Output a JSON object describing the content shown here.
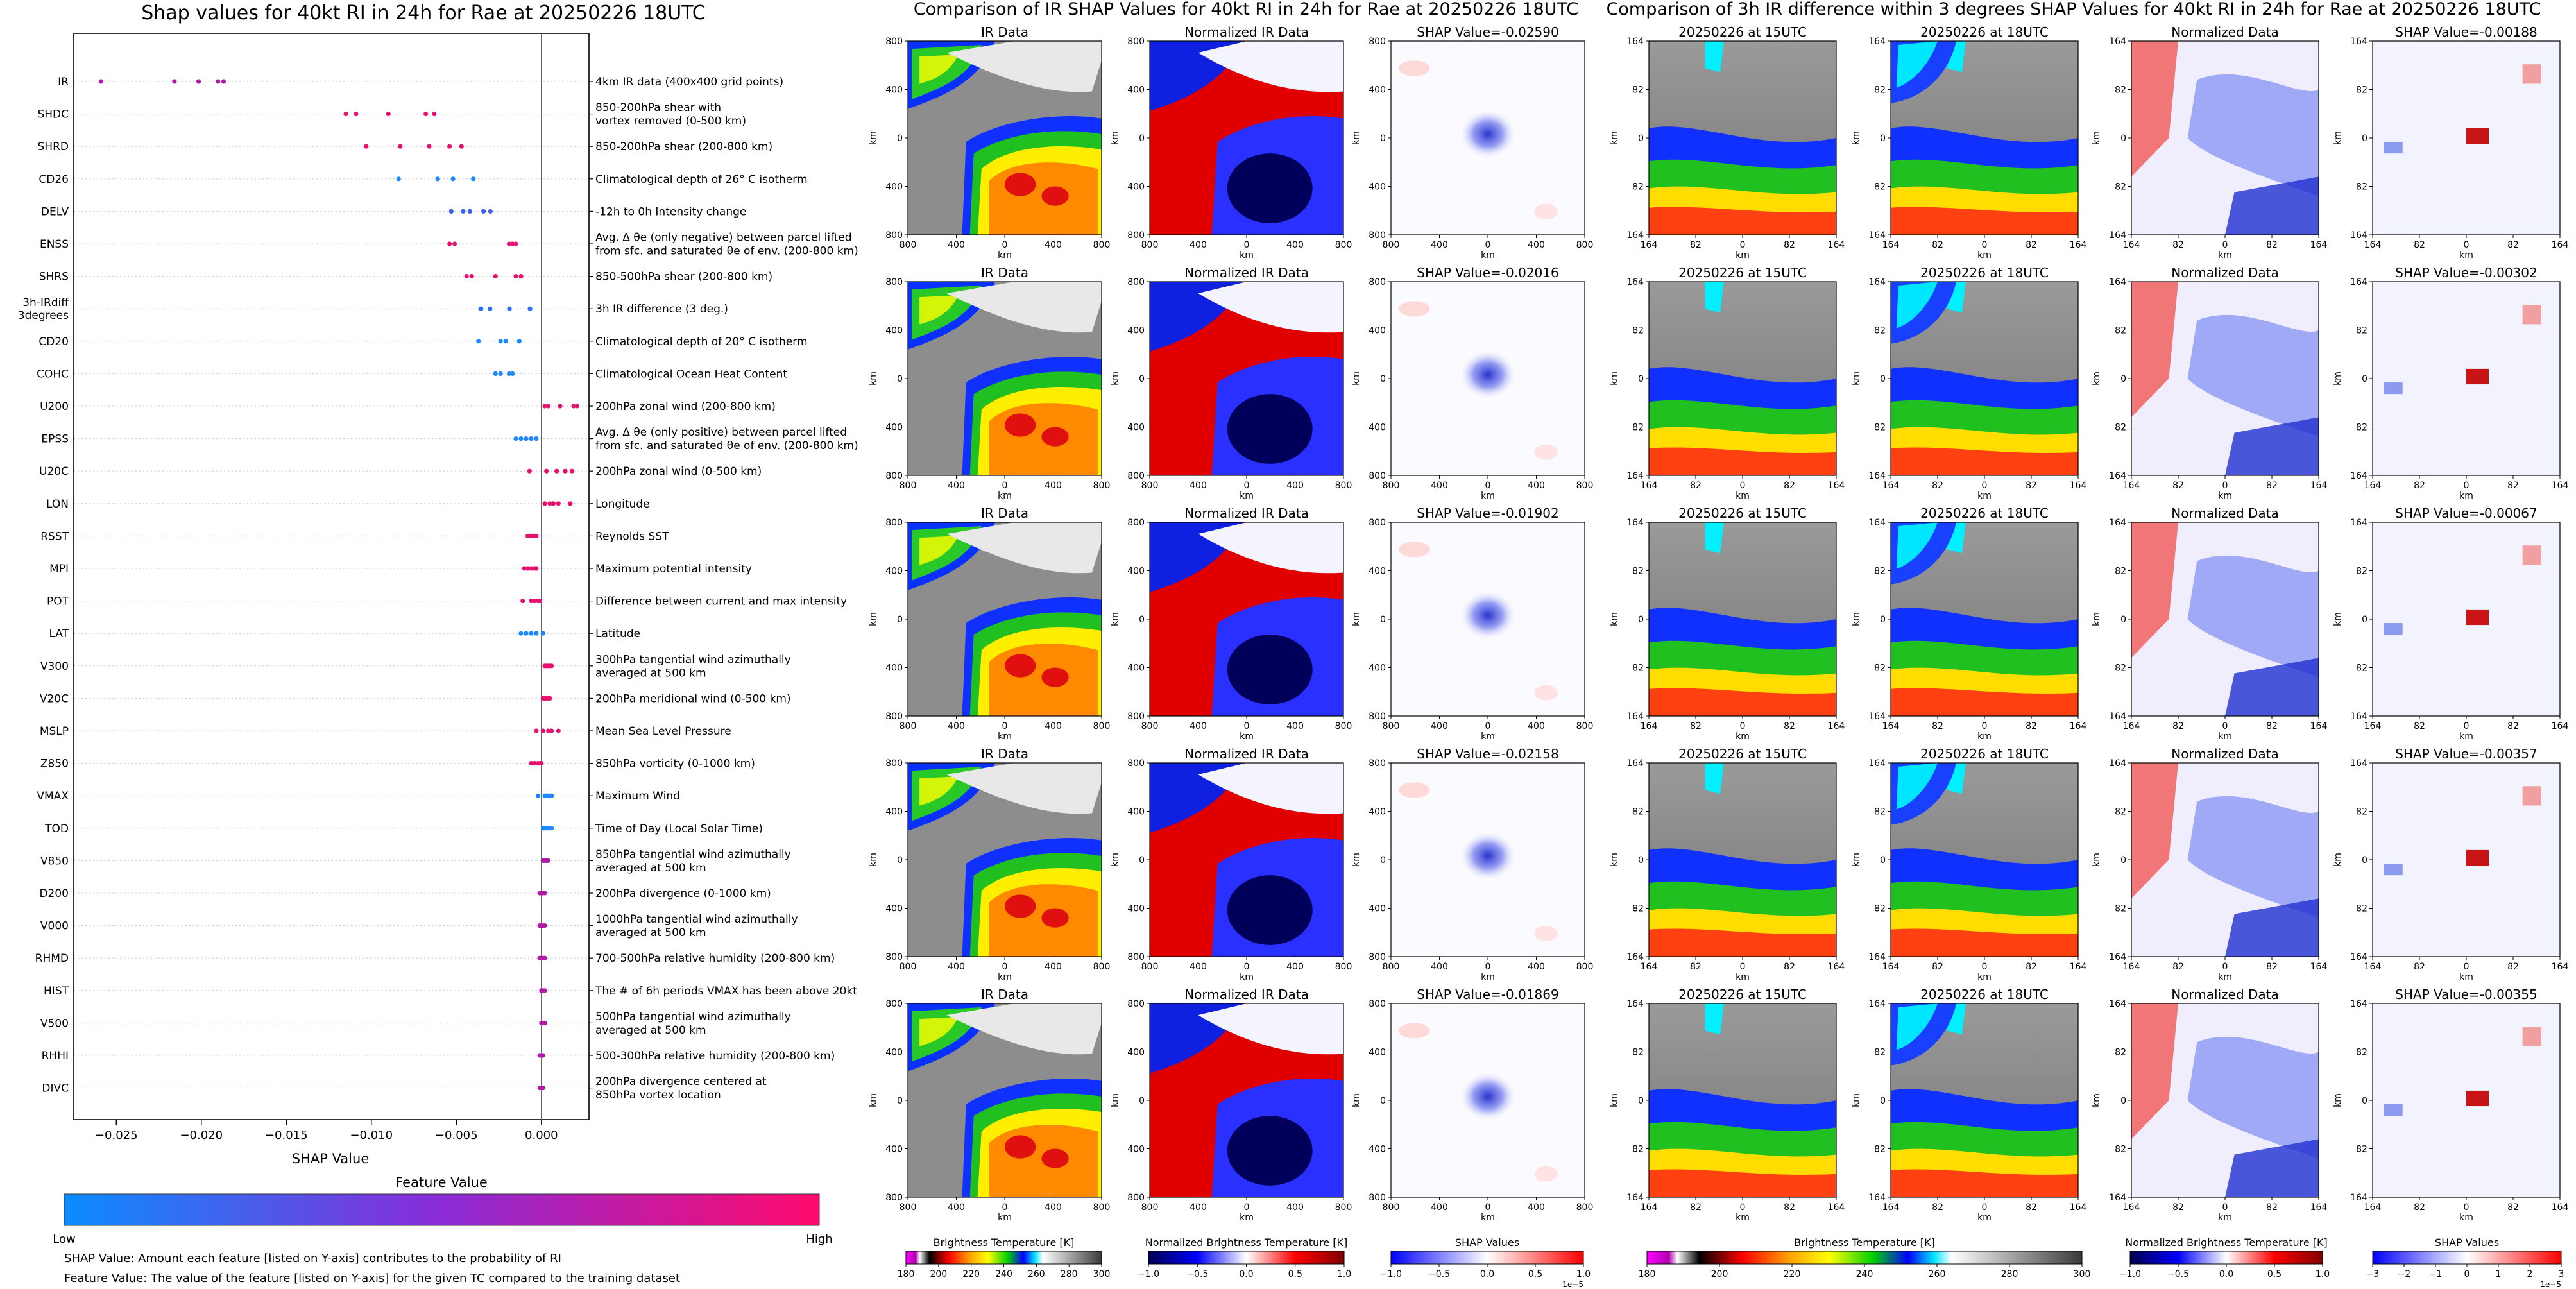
{
  "colors": {
    "feature_low": "#1e88ff",
    "feature_mid": "#8b2bd6",
    "feature_high": "#ff0a6c",
    "shap_positive": "#d62020",
    "shap_negative": "#2030d0"
  },
  "left_panel": {
    "title": "Shap values for 40kt RI in 24h for Rae at 20250226 18UTC",
    "xlabel": "SHAP Value",
    "colorbar_title": "Feature Value",
    "colorbar_low": "Low",
    "colorbar_high": "High",
    "footnote1": "SHAP Value: Amount each feature [listed on Y-axis] contributes to the probability of RI",
    "footnote2": "Feature Value: The value of the feature [listed on Y-axis] for the given TC compared to the training dataset"
  },
  "ir_panel": {
    "title": "Comparison of IR SHAP Values for 40kt RI in 24h for Rae at 20250226 18UTC",
    "col_titles": [
      "IR Data",
      "Normalized IR Data"
    ],
    "shap_titles": [
      "SHAP Value=-0.02590",
      "SHAP Value=-0.02016",
      "SHAP Value=-0.01902",
      "SHAP Value=-0.02158",
      "SHAP Value=-0.01869"
    ],
    "ticks": [
      "800",
      "400",
      "0",
      "400",
      "800"
    ],
    "axis_label": "km",
    "cbar_labels": [
      "Brightness Temperature [K]",
      "Normalized Brightness Temperature [K]",
      "SHAP Values"
    ],
    "cbar1_ticks": [
      "180",
      "200",
      "220",
      "240",
      "260",
      "280",
      "300"
    ],
    "cbar2_ticks": [
      "−1.0",
      "−0.5",
      "0.0",
      "0.5",
      "1.0"
    ],
    "cbar3_ticks": [
      "−1.0",
      "−0.5",
      "0.0",
      "0.5",
      "1.0"
    ],
    "cbar3_exp": "1e−5"
  },
  "diff_panel": {
    "title": "Comparison of 3h IR difference within 3 degrees SHAP Values for 40kt RI in 24h for Rae at 20250226 18UTC",
    "col_titles": [
      "20250226 at 15UTC",
      "20250226 at 18UTC",
      "Normalized Data"
    ],
    "shap_titles": [
      "SHAP Value=-0.00188",
      "SHAP Value=-0.00302",
      "SHAP Value=-0.00067",
      "SHAP Value=-0.00357",
      "SHAP Value=-0.00355"
    ],
    "ticks": [
      "164",
      "82",
      "0",
      "82",
      "164"
    ],
    "axis_label": "km",
    "cbar_labels": [
      "Brightness Temperature [K]",
      "Normalized Brightness Temperature [K]",
      "SHAP Values"
    ],
    "cbar1_ticks": [
      "180",
      "200",
      "220",
      "240",
      "260",
      "280",
      "300"
    ],
    "cbar2_ticks": [
      "−1.0",
      "−0.5",
      "0.0",
      "0.5",
      "1.0"
    ],
    "cbar3_ticks": [
      "−3",
      "−2",
      "−1",
      "0",
      "1",
      "2",
      "3"
    ],
    "cbar3_exp": "1e−5"
  },
  "chart_data": [
    {
      "type": "scatter",
      "title": "Shap values for 40kt RI in 24h for Rae at 20250226 18UTC",
      "xlabel": "SHAP Value",
      "xlim": [
        -0.0275,
        0.0028
      ],
      "xticks": [
        -0.025,
        -0.02,
        -0.015,
        -0.01,
        -0.005,
        0.0
      ],
      "xtick_labels": [
        "−0.025",
        "−0.020",
        "−0.015",
        "−0.010",
        "−0.005",
        "0.000"
      ],
      "legend": "colorbar below plot, Low to High",
      "features": [
        {
          "name": "IR",
          "desc": "4km IR data (400x400 grid points)",
          "color": "#b01aa8",
          "values": [
            -0.0259,
            -0.02158,
            -0.02016,
            -0.01902,
            -0.01869
          ]
        },
        {
          "name": "SHDC",
          "desc": "850-200hPa shear with\nvortex removed (0-500 km)",
          "color": "#e8106e",
          "values": [
            -0.0115,
            -0.0109,
            -0.009,
            -0.0068,
            -0.0063
          ]
        },
        {
          "name": "SHRD",
          "desc": "850-200hPa shear (200-800 km)",
          "color": "#e8106e",
          "values": [
            -0.0103,
            -0.0083,
            -0.0066,
            -0.0054,
            -0.0047
          ]
        },
        {
          "name": "CD26",
          "desc": "Climatological depth of 26° C isotherm",
          "color": "#1e88ff",
          "values": [
            -0.0084,
            -0.0061,
            -0.0052,
            -0.004
          ]
        },
        {
          "name": "DELV",
          "desc": "-12h to 0h Intensity change",
          "color": "#3a60ee",
          "values": [
            -0.0053,
            -0.0046,
            -0.0042,
            -0.0034,
            -0.003
          ]
        },
        {
          "name": "ENSS",
          "desc": "Avg. Δ θe (only negative) between parcel lifted\nfrom sfc. and saturated θe of env. (200-800 km)",
          "color": "#e8106e",
          "values": [
            -0.0054,
            -0.0051,
            -0.0019,
            -0.0017,
            -0.0015
          ]
        },
        {
          "name": "SHRS",
          "desc": "850-500hPa shear (200-800 km)",
          "color": "#e8106e",
          "values": [
            -0.0044,
            -0.0041,
            -0.0027,
            -0.0015,
            -0.0012
          ]
        },
        {
          "name": "3h-IRdiff\n3degrees",
          "desc": "3h IR difference (3 deg.)",
          "color": "#2a70f5",
          "values": [
            -0.00357,
            -0.00355,
            -0.00302,
            -0.00188,
            -0.00067
          ]
        },
        {
          "name": "CD20",
          "desc": "Climatological depth of 20° C isotherm",
          "color": "#1e88ff",
          "values": [
            -0.0037,
            -0.0024,
            -0.0021,
            -0.0013
          ]
        },
        {
          "name": "COHC",
          "desc": "Climatological Ocean Heat Content",
          "color": "#1e88ff",
          "values": [
            -0.0027,
            -0.0024,
            -0.0019,
            -0.0017
          ]
        },
        {
          "name": "U200",
          "desc": "200hPa zonal wind (200-800 km)",
          "color": "#e8106e",
          "values": [
            0.0002,
            0.0004,
            0.0011,
            0.0019,
            0.0021
          ]
        },
        {
          "name": "EPSS",
          "desc": "Avg. Δ θe (only positive) between parcel lifted\nfrom sfc. and saturated θe of env. (200-800 km)",
          "color": "#1e88ff",
          "values": [
            -0.0015,
            -0.0012,
            -0.0009,
            -0.0006,
            -0.0003
          ]
        },
        {
          "name": "U20C",
          "desc": "200hPa zonal wind (0-500 km)",
          "color": "#e8106e",
          "values": [
            -0.0007,
            0.0003,
            0.0009,
            0.0014,
            0.0018
          ]
        },
        {
          "name": "LON",
          "desc": "Longitude",
          "color": "#e8106e",
          "values": [
            0.0002,
            0.0005,
            0.0007,
            0.001,
            0.0017
          ]
        },
        {
          "name": "RSST",
          "desc": "Reynolds SST",
          "color": "#e8106e",
          "values": [
            -0.0008,
            -0.0006,
            -0.0005,
            -0.0004,
            -0.0003
          ]
        },
        {
          "name": "MPI",
          "desc": "Maximum potential intensity",
          "color": "#e8106e",
          "values": [
            -0.001,
            -0.0008,
            -0.0006,
            -0.0004,
            -0.0003
          ]
        },
        {
          "name": "POT",
          "desc": "Difference between current and max intensity",
          "color": "#e8106e",
          "values": [
            -0.0011,
            -0.0006,
            -0.0004,
            -0.0002,
            -0.0001
          ]
        },
        {
          "name": "LAT",
          "desc": "Latitude",
          "color": "#1e88ff",
          "values": [
            -0.0012,
            -0.0009,
            -0.0006,
            -0.0003,
            0.0001
          ]
        },
        {
          "name": "V300",
          "desc": "300hPa tangential wind azimuthally\naveraged at 500 km",
          "color": "#e8106e",
          "values": [
            0.0002,
            0.0003,
            0.0004,
            0.0005,
            0.0006
          ]
        },
        {
          "name": "V20C",
          "desc": "200hPa meridional wind (0-500 km)",
          "color": "#e8106e",
          "values": [
            0.0001,
            0.0002,
            0.0003,
            0.0004,
            0.0005
          ]
        },
        {
          "name": "MSLP",
          "desc": "Mean Sea Level Pressure",
          "color": "#e8106e",
          "values": [
            -0.0003,
            0.0001,
            0.0004,
            0.0006,
            0.001
          ]
        },
        {
          "name": "Z850",
          "desc": "850hPa vorticity (0-1000 km)",
          "color": "#e8106e",
          "values": [
            -0.0006,
            -0.0004,
            -0.0002,
            -0.0001,
            0.0
          ]
        },
        {
          "name": "VMAX",
          "desc": "Maximum Wind",
          "color": "#1e88ff",
          "values": [
            -0.0002,
            0.0002,
            0.0003,
            0.0004,
            0.0006
          ]
        },
        {
          "name": "TOD",
          "desc": "Time of Day (Local Solar Time)",
          "color": "#1e88ff",
          "values": [
            0.0001,
            0.0002,
            0.0003,
            0.0004,
            0.0006
          ]
        },
        {
          "name": "V850",
          "desc": "850hPa tangential wind azimuthally\naveraged at 500 km",
          "color": "#b01aa8",
          "values": [
            0.0001,
            0.0002,
            0.0003,
            0.0004
          ]
        },
        {
          "name": "D200",
          "desc": "200hPa divergence (0-1000 km)",
          "color": "#b01aa8",
          "values": [
            -0.0001,
            0.0,
            0.0001,
            0.0002
          ]
        },
        {
          "name": "V000",
          "desc": "1000hPa tangential wind azimuthally\naveraged at 500 km",
          "color": "#b01aa8",
          "values": [
            -0.0001,
            0.0,
            0.0001,
            0.0002
          ]
        },
        {
          "name": "RHMD",
          "desc": "700-500hPa relative humidity (200-800 km)",
          "color": "#b01aa8",
          "values": [
            -0.0001,
            0.0,
            0.0001,
            0.0002
          ]
        },
        {
          "name": "HIST",
          "desc": "The # of 6h periods VMAX has been above 20kt",
          "color": "#b01aa8",
          "values": [
            0.0,
            0.0001,
            0.0002
          ]
        },
        {
          "name": "V500",
          "desc": "500hPa tangential wind azimuthally\naveraged at 500 km",
          "color": "#b01aa8",
          "values": [
            0.0,
            0.0001,
            0.0002
          ]
        },
        {
          "name": "RHHI",
          "desc": "500-300hPa relative humidity (200-800 km)",
          "color": "#b01aa8",
          "values": [
            -0.0001,
            0.0,
            0.0001
          ]
        },
        {
          "name": "DIVC",
          "desc": "200hPa divergence centered at\n850hPa vortex location",
          "color": "#b01aa8",
          "values": [
            -0.0001,
            0.0,
            0.0001
          ]
        }
      ]
    }
  ]
}
